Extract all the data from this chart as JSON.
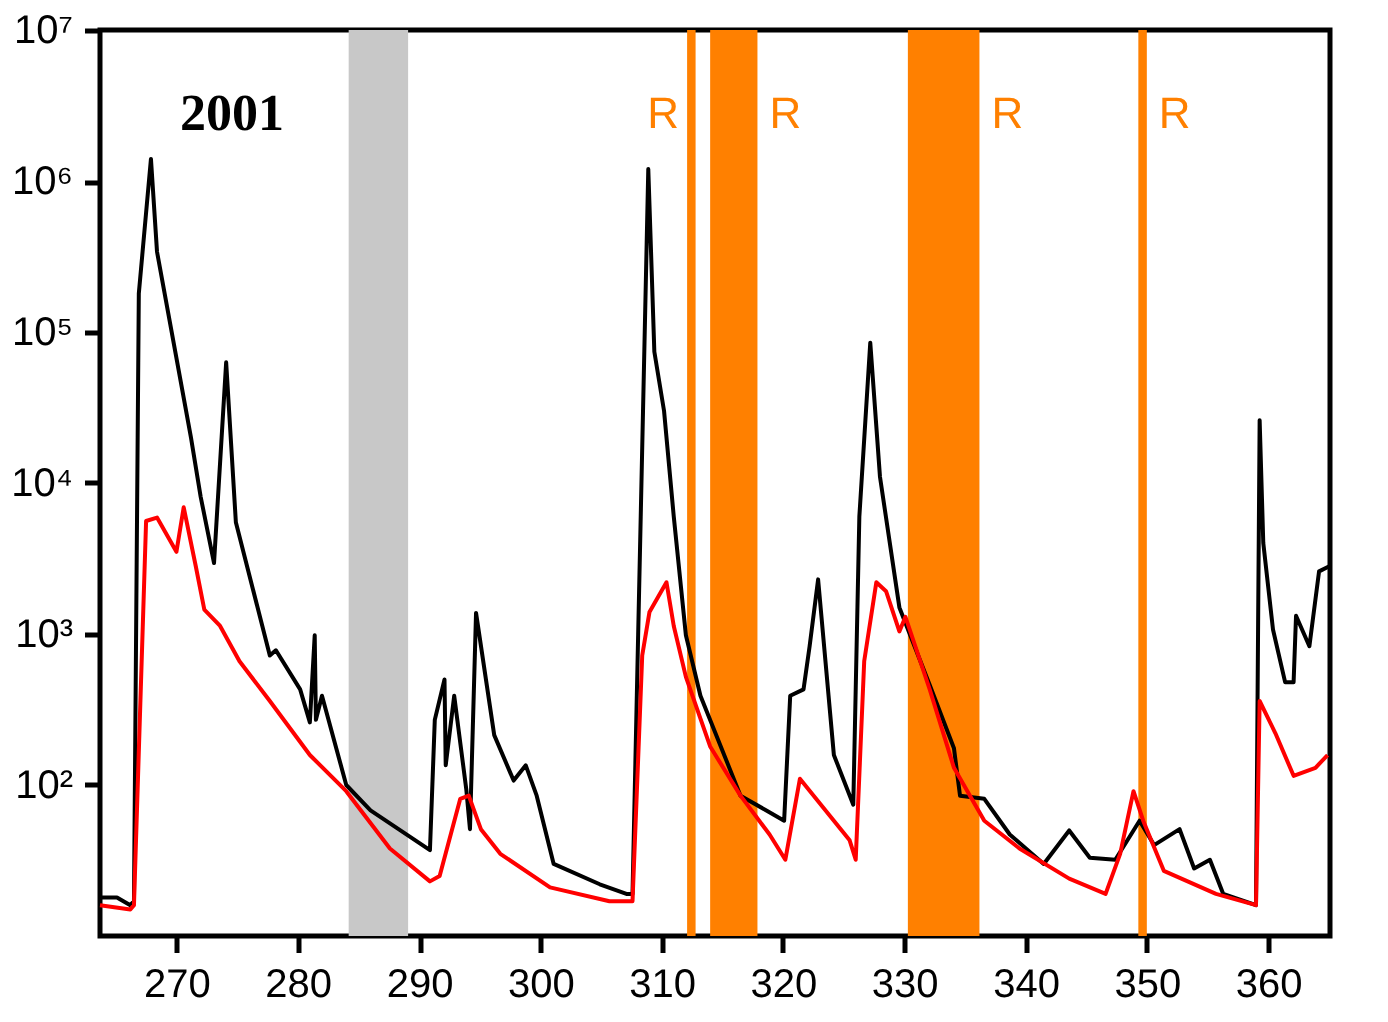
{
  "chart_data": {
    "type": "line",
    "annotations": [
      "2001"
    ],
    "xlim": [
      263.7,
      365.1
    ],
    "xticks": [
      270,
      280,
      290,
      300,
      310,
      320,
      330,
      340,
      350,
      360
    ],
    "ylim": [
      10,
      10000000
    ],
    "yticks": [
      {
        "value": 100,
        "label": "10²"
      },
      {
        "value": 1000,
        "label": "10³"
      },
      {
        "value": 10000,
        "label": "10⁴"
      },
      {
        "value": 100000,
        "label": "10⁵"
      },
      {
        "value": 1000000,
        "label": "10⁶"
      },
      {
        "value": 10000000,
        "label": "10⁷"
      }
    ],
    "log": true,
    "bands": [
      {
        "axis": "x",
        "from": 284.2,
        "to": 289.1,
        "color": "#c8c8c8"
      },
      {
        "axis": "x",
        "from": 312.1,
        "to": 312.8,
        "color": "#ff8000",
        "label": "R"
      },
      {
        "axis": "x",
        "from": 314.0,
        "to": 317.9,
        "color": "#ff8000",
        "label": "R"
      },
      {
        "axis": "x",
        "from": 330.3,
        "to": 336.2,
        "color": "#ff8000",
        "label": "R"
      },
      {
        "axis": "x",
        "from": 349.3,
        "to": 350.0,
        "color": "#ff8000",
        "label": "R"
      }
    ],
    "series": [
      {
        "color": "#000000",
        "x": [
          263.7,
          265.1,
          266.2,
          266.5,
          266.9,
          267.9,
          268.4,
          271.2,
          272.0,
          273.1,
          274.1,
          274.9,
          277.7,
          278.2,
          280.2,
          281.0,
          281.4,
          281.5,
          282.0,
          284.0,
          286.0,
          290.9,
          291.3,
          292.1,
          292.2,
          292.9,
          293.9,
          294.2,
          294.7,
          296.2,
          297.8,
          298.8,
          299.7,
          301.1,
          304.9,
          307.1,
          307.6,
          308.9,
          309.4,
          310.2,
          311.0,
          312.0,
          313.2,
          316.5,
          318.6,
          320.1,
          320.6,
          321.7,
          322.2,
          322.9,
          324.2,
          325.8,
          326.3,
          327.2,
          328.0,
          329.6,
          332.1,
          334.1,
          334.6,
          336.6,
          338.7,
          341.5,
          343.6,
          345.3,
          347.4,
          349.4,
          350.6,
          352.7,
          353.9,
          355.2,
          356.3,
          359.0,
          359.3,
          359.6,
          360.4,
          361.4,
          362.1,
          362.3,
          363.4,
          364.2,
          365.0
        ],
        "values": [
          18,
          18,
          16,
          17,
          180000,
          1400000,
          340000,
          20000,
          8100,
          2950,
          63000,
          5500,
          720,
          780,
          430,
          260,
          980,
          270,
          390,
          100,
          68,
          37,
          270,
          500,
          135,
          390,
          93,
          51,
          1380,
          214,
          107,
          135,
          85,
          30,
          22,
          19,
          19,
          1200000,
          74000,
          30000,
          6000,
          980,
          390,
          85,
          68,
          58,
          390,
          430,
          830,
          2300,
          158,
          74,
          6000,
          85000,
          11000,
          1500,
          460,
          175,
          85,
          81,
          47,
          30,
          50,
          33,
          32,
          58,
          40,
          51,
          28,
          32,
          19,
          16,
          26000,
          4000,
          1070,
          480,
          480,
          1320,
          830,
          2600,
          2800
        ]
      },
      {
        "color": "#ff0000",
        "x": [
          263.7,
          266.2,
          266.5,
          267.5,
          268.4,
          270.0,
          270.6,
          271.6,
          272.3,
          273.6,
          275.2,
          277.7,
          281.0,
          284.0,
          287.6,
          290.9,
          291.7,
          293.4,
          294.1,
          295.1,
          296.7,
          300.8,
          305.7,
          307.4,
          307.6,
          308.4,
          309.0,
          310.4,
          311.0,
          312.0,
          314.0,
          316.5,
          318.9,
          320.2,
          321.4,
          325.5,
          326.0,
          326.7,
          327.7,
          328.5,
          329.6,
          330.1,
          332.1,
          334.1,
          336.6,
          339.5,
          343.6,
          346.6,
          347.8,
          348.9,
          349.7,
          351.4,
          355.7,
          359.0,
          359.3,
          360.6,
          362.1,
          363.9,
          364.9
        ],
        "values": [
          16,
          15,
          16,
          5600,
          5900,
          3500,
          6900,
          2800,
          1450,
          1130,
          660,
          360,
          158,
          91,
          38,
          23,
          25,
          81,
          85,
          51,
          35,
          21,
          17,
          17,
          17,
          720,
          1400,
          2200,
          1130,
          520,
          180,
          85,
          47,
          32,
          110,
          43,
          32,
          660,
          2200,
          1920,
          1040,
          1300,
          430,
          130,
          58,
          38,
          24,
          19,
          35,
          91,
          58,
          27,
          19,
          16,
          360,
          220,
          115,
          130,
          158
        ]
      }
    ]
  }
}
